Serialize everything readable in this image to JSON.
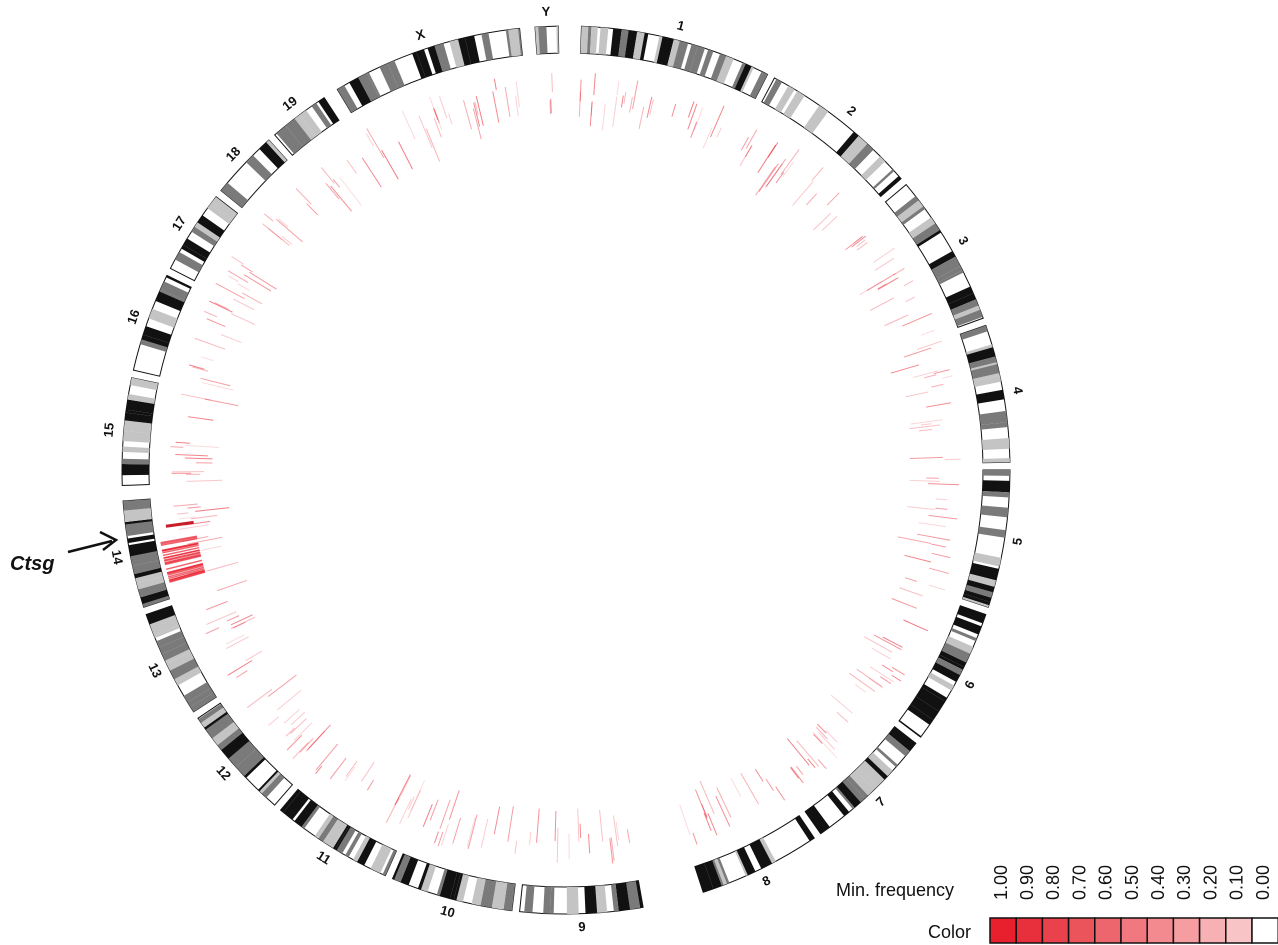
{
  "chromosomes": [
    {
      "name": "1",
      "start_deg": 2,
      "end_deg": 27
    },
    {
      "name": "2",
      "start_deg": 28,
      "end_deg": 49
    },
    {
      "name": "3",
      "start_deg": 50,
      "end_deg": 70
    },
    {
      "name": "4",
      "start_deg": 71,
      "end_deg": 89
    },
    {
      "name": "5",
      "start_deg": 90,
      "end_deg": 108
    },
    {
      "name": "6",
      "start_deg": 109,
      "end_deg": 127
    },
    {
      "name": "7",
      "start_deg": 128,
      "end_deg": 145
    },
    {
      "name": "8",
      "start_deg": 146,
      "end_deg": 162
    },
    {
      "name": "9",
      "start_deg": 170,
      "end_deg": 186
    },
    {
      "name": "10",
      "start_deg": 187,
      "end_deg": 203
    },
    {
      "name": "11",
      "start_deg": 204,
      "end_deg": 220
    },
    {
      "name": "12",
      "start_deg": 221,
      "end_deg": 236
    },
    {
      "name": "13",
      "start_deg": 237,
      "end_deg": 251
    },
    {
      "name": "14",
      "start_deg": 252,
      "end_deg": 266
    },
    {
      "name": "15",
      "start_deg": 268,
      "end_deg": 282
    },
    {
      "name": "16",
      "start_deg": 283,
      "end_deg": 296
    },
    {
      "name": "17",
      "start_deg": 297,
      "end_deg": 308
    },
    {
      "name": "18",
      "start_deg": 309,
      "end_deg": 318
    },
    {
      "name": "19",
      "start_deg": 319,
      "end_deg": 327
    },
    {
      "name": "X",
      "start_deg": 329,
      "end_deg": 354
    },
    {
      "name": "Y",
      "start_deg": 356,
      "end_deg": 359
    }
  ],
  "annotation": {
    "label": "Ctsg",
    "chromosome": "14"
  },
  "legend": {
    "frequency_label": "Min. frequency",
    "color_label": "Color",
    "values": [
      "1.00",
      "0.90",
      "0.80",
      "0.70",
      "0.60",
      "0.50",
      "0.40",
      "0.30",
      "0.20",
      "0.10",
      "0.00"
    ],
    "colors": [
      "#e8202e",
      "#e8303c",
      "#ea424c",
      "#ec545c",
      "#ee666d",
      "#f0787e",
      "#f28a8f",
      "#f59da1",
      "#f7b0b3",
      "#f9c4c6",
      "#ffffff"
    ]
  },
  "colors": {
    "band_dark": "#111111",
    "band_mid": "#7a7a7a",
    "band_light": "#c4c4c4",
    "mark": "#e8202e"
  }
}
